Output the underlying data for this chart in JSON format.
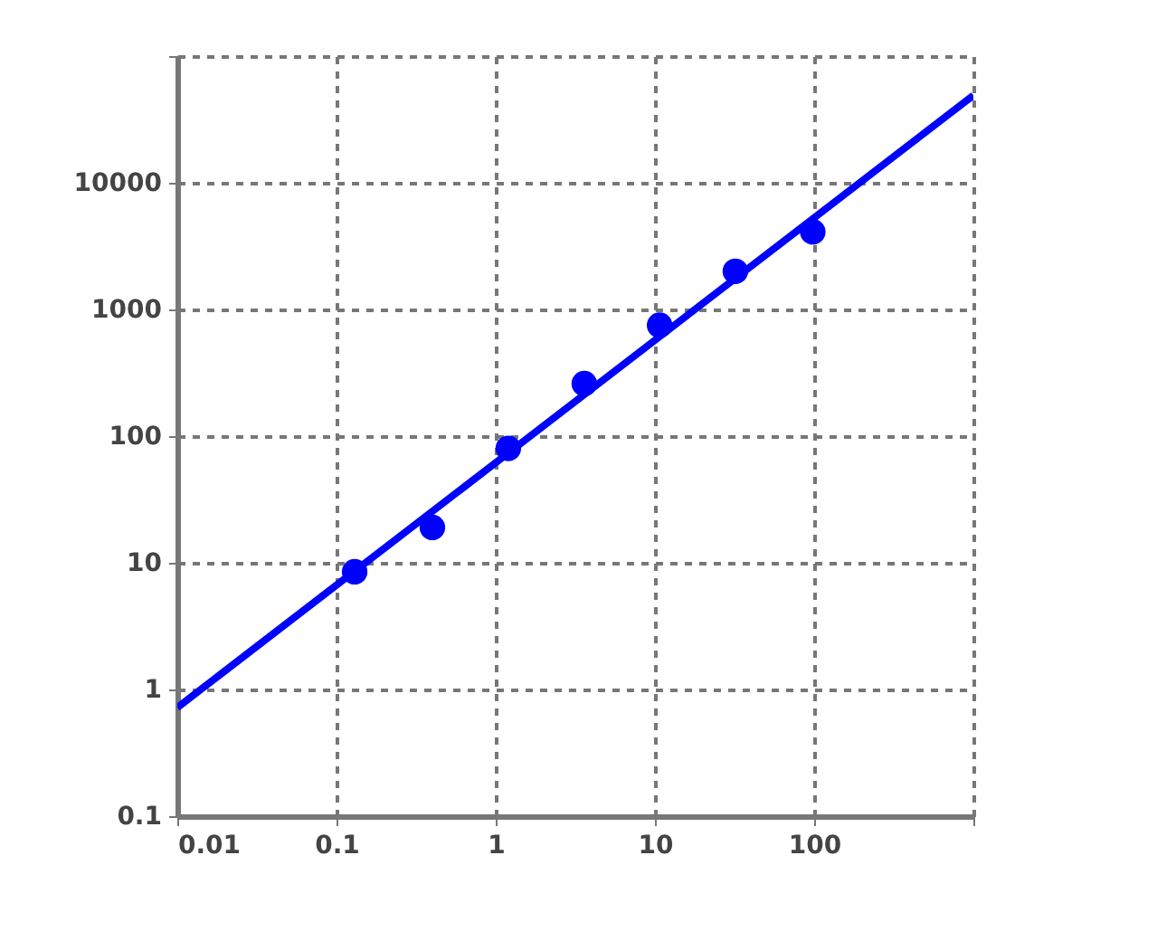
{
  "chart_data": {
    "type": "scatter",
    "log": "xy",
    "grid": true,
    "marker": "circle",
    "xlim": [
      0.01,
      1000
    ],
    "ylim": [
      0.1,
      100000
    ],
    "xticks": [
      {
        "value": 0.01,
        "label": "0.01"
      },
      {
        "value": 0.1,
        "label": "0.1"
      },
      1,
      10,
      100,
      {
        "value": 1000,
        "label": null
      }
    ],
    "yticks": [
      {
        "value": 0.1,
        "label": "0.1"
      },
      1,
      10,
      100,
      1000,
      10000,
      {
        "value": 100000,
        "label": null
      }
    ],
    "series": [
      {
        "color": "#0000ff",
        "x": [
          0.13,
          0.4,
          1.2,
          3.6,
          10.7,
          32,
          98
        ],
        "values": [
          8.5,
          19,
          80,
          260,
          750,
          2000,
          4100
        ]
      },
      {
        "type": "line",
        "color": "#0000ff",
        "x": [
          0.01,
          1000
        ],
        "values": [
          0.72,
          49000
        ],
        "marker": "none",
        "line_style": "solid"
      }
    ]
  }
}
